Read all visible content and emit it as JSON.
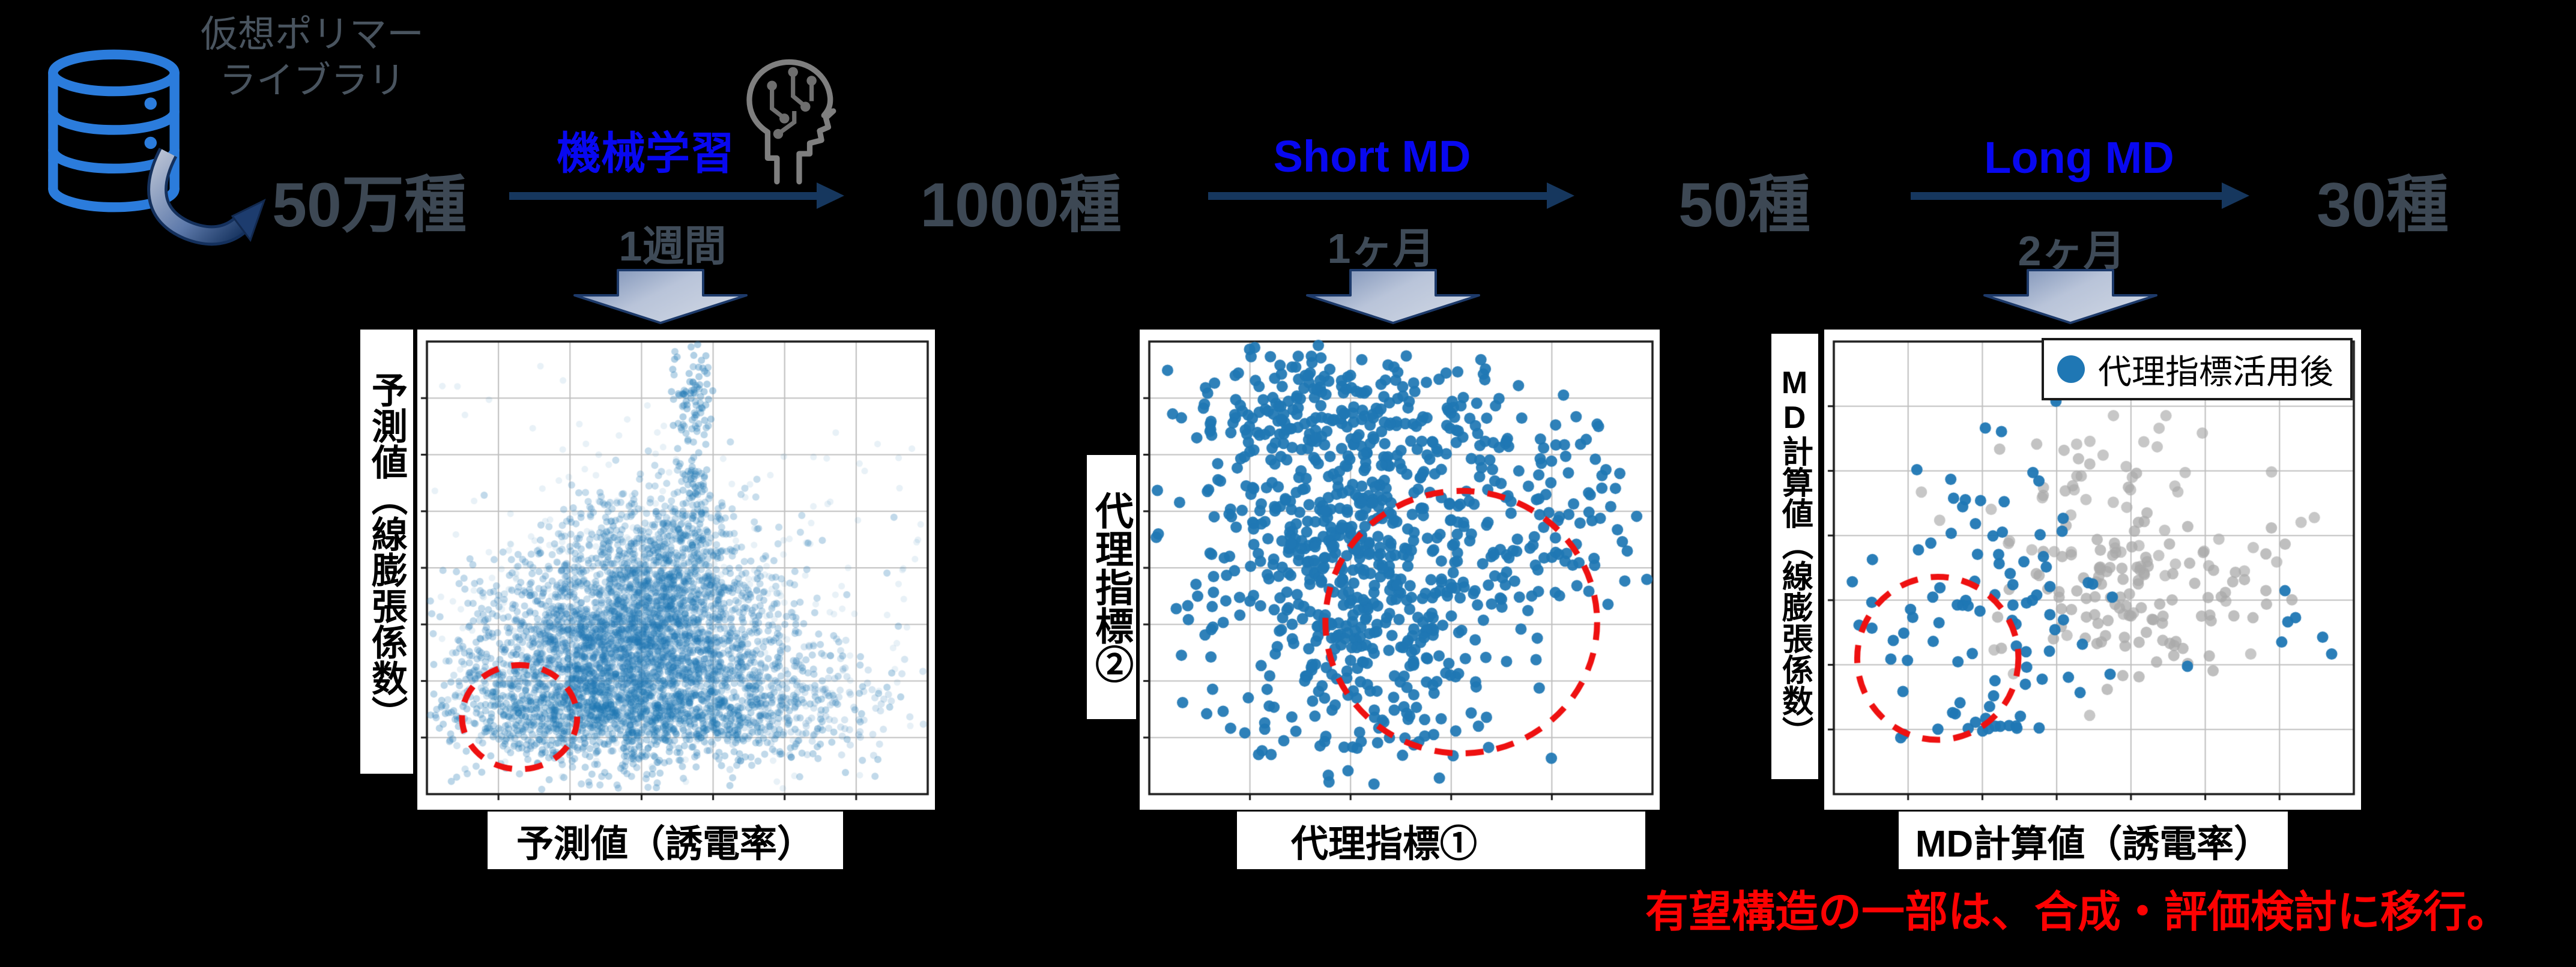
{
  "background": "#000000",
  "accent_colors": {
    "step_label_blue": "#0808f0",
    "arrow_navy": "#16375e",
    "database_blue": "#2b7cdc",
    "gray_text": "#3d4854",
    "footnote_red": "#fe0202",
    "dot_blue": "#1f77b4",
    "dot_gray": "#a9a9a9",
    "annotation_red": "#ee1111"
  },
  "library": {
    "name_line1": "仮想ポリマー",
    "name_line2": "ライブラリ",
    "icon": "database-icon"
  },
  "flow": {
    "counts": [
      "50万種",
      "1000種",
      "50種",
      "30種"
    ],
    "steps": [
      {
        "method": "機械学習",
        "duration": "1週間",
        "icon": "brain-head-icon"
      },
      {
        "method": "Short MD",
        "duration": "1ヶ月"
      },
      {
        "method": "Long MD",
        "duration": "2ヶ月"
      }
    ]
  },
  "footnote": "有望構造の一部は、合成・評価検討に移行。",
  "chart_data": [
    {
      "type": "scatter",
      "xlabel": "予測値（誘電率）",
      "ylabel": "予測値（線膨張係数）",
      "tick_labels_visible": false,
      "grid": {
        "nx": 7,
        "ny": 8
      },
      "clusters": [
        {
          "n": 450,
          "cx": 0.45,
          "cy": 0.6,
          "sdx": 0.26,
          "sdy": 0.2,
          "r": 5.5,
          "alpha": 0.1,
          "color": "#1f77b4"
        },
        {
          "n": 2600,
          "cx": 0.41,
          "cy": 0.68,
          "sdx": 0.155,
          "sdy": 0.115,
          "r": 6,
          "alpha": 0.28,
          "color": "#1f77b4"
        },
        {
          "n": 1000,
          "cx": 0.4,
          "cy": 0.82,
          "sdx": 0.21,
          "sdy": 0.055,
          "r": 6,
          "alpha": 0.3,
          "color": "#1f77b4"
        },
        {
          "n": 700,
          "cx": 0.47,
          "cy": 0.5,
          "sdx": 0.095,
          "sdy": 0.095,
          "r": 6,
          "alpha": 0.25,
          "color": "#1f77b4"
        },
        {
          "n": 130,
          "cx": 0.53,
          "cy": 0.28,
          "sdx": 0.018,
          "sdy": 0.13,
          "r": 6,
          "alpha": 0.3,
          "color": "#1f77b4"
        },
        {
          "n": 45,
          "cx": 0.535,
          "cy": 0.1,
          "sdx": 0.02,
          "sdy": 0.05,
          "r": 6,
          "alpha": 0.35,
          "color": "#1f77b4"
        },
        {
          "n": 70,
          "cx": 0.14,
          "cy": 0.78,
          "sdx": 0.05,
          "sdy": 0.09,
          "r": 6,
          "alpha": 0.2,
          "color": "#1f77b4"
        },
        {
          "n": 160,
          "cx": 0.76,
          "cy": 0.8,
          "sdx": 0.11,
          "sdy": 0.06,
          "r": 6,
          "alpha": 0.18,
          "color": "#1f77b4"
        }
      ],
      "highlight_ellipse": {
        "cx": 0.185,
        "cy": 0.83,
        "rx": 0.115,
        "ry": 0.115,
        "color": "#ee1111"
      },
      "legend": null
    },
    {
      "type": "scatter",
      "xlabel": "代理指標①",
      "ylabel": "代理指標②",
      "tick_labels_visible": false,
      "grid": {
        "nx": 5,
        "ny": 8
      },
      "clusters": [
        {
          "n": 150,
          "cx": 0.3,
          "cy": 0.15,
          "sdx": 0.12,
          "sdy": 0.07,
          "r": 9.5,
          "alpha": 0.93,
          "color": "#1f77b4"
        },
        {
          "n": 90,
          "cx": 0.55,
          "cy": 0.18,
          "sdx": 0.1,
          "sdy": 0.08,
          "r": 9.5,
          "alpha": 0.93,
          "color": "#1f77b4"
        },
        {
          "n": 260,
          "cx": 0.37,
          "cy": 0.4,
          "sdx": 0.13,
          "sdy": 0.11,
          "r": 9.5,
          "alpha": 0.93,
          "color": "#1f77b4"
        },
        {
          "n": 200,
          "cx": 0.43,
          "cy": 0.63,
          "sdx": 0.11,
          "sdy": 0.11,
          "r": 9.5,
          "alpha": 0.93,
          "color": "#1f77b4"
        },
        {
          "n": 110,
          "cx": 0.65,
          "cy": 0.42,
          "sdx": 0.15,
          "sdy": 0.14,
          "r": 9.5,
          "alpha": 0.93,
          "color": "#1f77b4"
        },
        {
          "n": 60,
          "cx": 0.8,
          "cy": 0.38,
          "sdx": 0.1,
          "sdy": 0.15,
          "r": 9.5,
          "alpha": 0.93,
          "color": "#1f77b4"
        },
        {
          "n": 60,
          "cx": 0.46,
          "cy": 0.85,
          "sdx": 0.13,
          "sdy": 0.06,
          "r": 9.5,
          "alpha": 0.93,
          "color": "#1f77b4"
        },
        {
          "n": 25,
          "cx": 0.11,
          "cy": 0.55,
          "sdx": 0.04,
          "sdy": 0.14,
          "r": 9.5,
          "alpha": 0.93,
          "color": "#1f77b4"
        }
      ],
      "highlight_ellipse": {
        "cx": 0.62,
        "cy": 0.62,
        "rx": 0.27,
        "ry": 0.29,
        "color": "#ee1111"
      },
      "legend": null
    },
    {
      "type": "scatter",
      "xlabel": "MD計算値（誘電率）",
      "ylabel": "MD計算値（線膨張係数）",
      "tick_labels_visible": false,
      "grid": {
        "nx": 7,
        "ny": 7
      },
      "clusters": [
        {
          "n": 115,
          "cx": 0.6,
          "cy": 0.55,
          "sdx": 0.12,
          "sdy": 0.095,
          "r": 9.5,
          "alpha": 0.75,
          "color": "#a9a9a9"
        },
        {
          "n": 55,
          "cx": 0.63,
          "cy": 0.42,
          "sdx": 0.2,
          "sdy": 0.16,
          "r": 9.5,
          "alpha": 0.65,
          "color": "#a9a9a9"
        },
        {
          "n": 12,
          "cx": 0.44,
          "cy": 0.27,
          "sdx": 0.07,
          "sdy": 0.09,
          "r": 9.5,
          "alpha": 0.7,
          "color": "#a9a9a9"
        },
        {
          "n": 62,
          "cx": 0.285,
          "cy": 0.63,
          "sdx": 0.115,
          "sdy": 0.115,
          "r": 9.5,
          "alpha": 0.95,
          "color": "#1f77b4"
        },
        {
          "n": 26,
          "cx": 0.33,
          "cy": 0.37,
          "sdx": 0.075,
          "sdy": 0.13,
          "r": 9.5,
          "alpha": 0.95,
          "color": "#1f77b4"
        },
        {
          "n": 8,
          "cx": 0.22,
          "cy": 0.84,
          "sdx": 0.1,
          "sdy": 0.04,
          "r": 9.5,
          "alpha": 0.95,
          "color": "#1f77b4"
        },
        {
          "n": 6,
          "cx": 0.84,
          "cy": 0.63,
          "sdx": 0.09,
          "sdy": 0.07,
          "r": 9.5,
          "alpha": 0.95,
          "color": "#1f77b4"
        },
        {
          "n": 4,
          "cx": 0.09,
          "cy": 0.6,
          "sdx": 0.03,
          "sdy": 0.06,
          "r": 9.5,
          "alpha": 0.95,
          "color": "#1f77b4"
        }
      ],
      "highlight_ellipse": {
        "cx": 0.2,
        "cy": 0.7,
        "rx": 0.155,
        "ry": 0.18,
        "color": "#ee1111"
      },
      "legend": {
        "marker": "circle",
        "marker_color": "#1f77b4",
        "label": "代理指標活用後"
      }
    }
  ]
}
